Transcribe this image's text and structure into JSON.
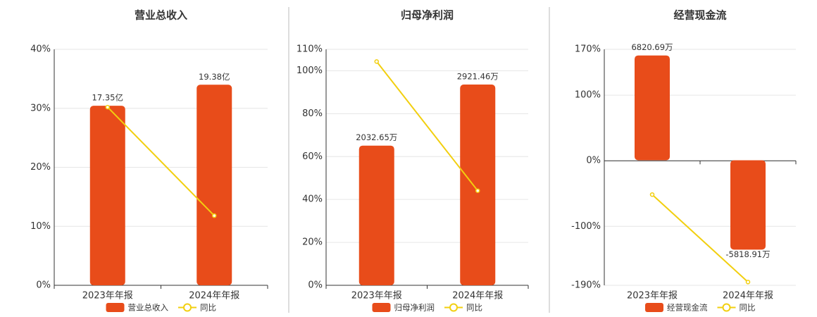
{
  "chart_data": [
    {
      "type": "combo",
      "title": "营业总收入",
      "categories": [
        "2023年年报",
        "2024年年报"
      ],
      "series": [
        {
          "name": "营业总收入",
          "type": "bar",
          "axis": "y2",
          "color": "#e84c1a",
          "values": [
            17.35,
            19.38
          ],
          "value_labels": [
            "17.35亿",
            "19.38亿"
          ]
        },
        {
          "name": "同比",
          "type": "line",
          "color": "#f2cf0f",
          "values": [
            30.2,
            11.8
          ]
        }
      ],
      "ylim": [
        0,
        40
      ],
      "yticks": [
        {
          "value": 0,
          "label": "0%"
        },
        {
          "value": 10,
          "label": "10%"
        },
        {
          "value": 20,
          "label": "20%"
        },
        {
          "value": 30,
          "label": "30%"
        },
        {
          "value": 40,
          "label": "40%"
        }
      ],
      "y2lim": [
        0,
        22.8
      ],
      "grid": true,
      "legend": "bottom"
    },
    {
      "type": "combo",
      "title": "归母净利润",
      "categories": [
        "2023年年报",
        "2024年年报"
      ],
      "series": [
        {
          "name": "归母净利润",
          "type": "bar",
          "axis": "y2",
          "color": "#e84c1a",
          "values": [
            2032.65,
            2921.46
          ],
          "value_labels": [
            "2032.65万",
            "2921.46万"
          ]
        },
        {
          "name": "同比",
          "type": "line",
          "color": "#f2cf0f",
          "values": [
            104.3,
            44.1
          ]
        }
      ],
      "ylim": [
        0,
        110
      ],
      "yticks": [
        {
          "value": 0,
          "label": "0%"
        },
        {
          "value": 20,
          "label": "20%"
        },
        {
          "value": 40,
          "label": "40%"
        },
        {
          "value": 60,
          "label": "60%"
        },
        {
          "value": 80,
          "label": "80%"
        },
        {
          "value": 100,
          "label": "100%"
        },
        {
          "value": 110,
          "label": "110%"
        }
      ],
      "y2lim": [
        0,
        3434
      ],
      "grid": true,
      "legend": "bottom"
    },
    {
      "type": "combo",
      "title": "经营现金流",
      "categories": [
        "2023年年报",
        "2024年年报"
      ],
      "series": [
        {
          "name": "经营现金流",
          "type": "bar",
          "axis": "y2",
          "color": "#e84c1a",
          "values": [
            6820.69,
            -5818.91
          ],
          "value_labels": [
            "6820.69万",
            "-5818.91万"
          ]
        },
        {
          "name": "同比",
          "type": "line",
          "color": "#f2cf0f",
          "values": [
            -51.6,
            -185
          ]
        }
      ],
      "ylim": [
        -190,
        170
      ],
      "yticks": [
        {
          "value": -190,
          "label": "-190%"
        },
        {
          "value": -100,
          "label": "-100%"
        },
        {
          "value": 0,
          "label": "0%"
        },
        {
          "value": 100,
          "label": "100%"
        },
        {
          "value": 170,
          "label": "170%"
        }
      ],
      "y2lim": [
        -8140,
        7220
      ],
      "grid": true,
      "legend": "bottom"
    }
  ]
}
